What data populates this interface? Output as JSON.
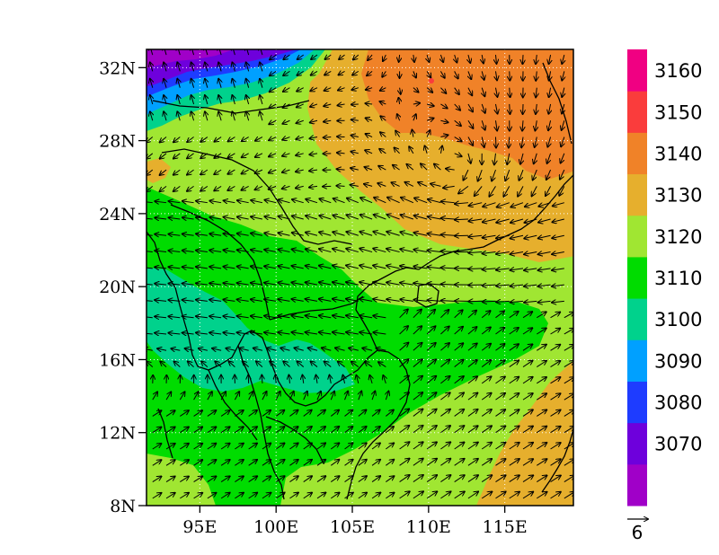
{
  "chart_data": {
    "type": "map",
    "variable": "geopotential height with wind vectors",
    "lon_range": [
      91.5,
      119.5
    ],
    "lat_range": [
      8,
      33
    ],
    "lon_ticks": [
      {
        "value": 95,
        "label": "95E"
      },
      {
        "value": 100,
        "label": "100E"
      },
      {
        "value": 105,
        "label": "105E"
      },
      {
        "value": 110,
        "label": "110E"
      },
      {
        "value": 115,
        "label": "115E"
      }
    ],
    "lat_ticks": [
      {
        "value": 8,
        "label": "8N"
      },
      {
        "value": 12,
        "label": "12N"
      },
      {
        "value": 16,
        "label": "16N"
      },
      {
        "value": 20,
        "label": "20N"
      },
      {
        "value": 24,
        "label": "24N"
      },
      {
        "value": 28,
        "label": "28N"
      },
      {
        "value": 32,
        "label": "32N"
      }
    ],
    "colorbar": {
      "levels": [
        "3070",
        "3080",
        "3090",
        "3100",
        "3110",
        "3120",
        "3130",
        "3140",
        "3150",
        "3160"
      ],
      "colors": [
        "#a000c8",
        "#6e00dc",
        "#1e3cff",
        "#00a0ff",
        "#00d28c",
        "#00dc00",
        "#a0e632",
        "#e6af2d",
        "#f08228",
        "#fa3c3c",
        "#f00082"
      ]
    },
    "reference_vector": {
      "label": "6"
    },
    "grid": "dotted"
  }
}
